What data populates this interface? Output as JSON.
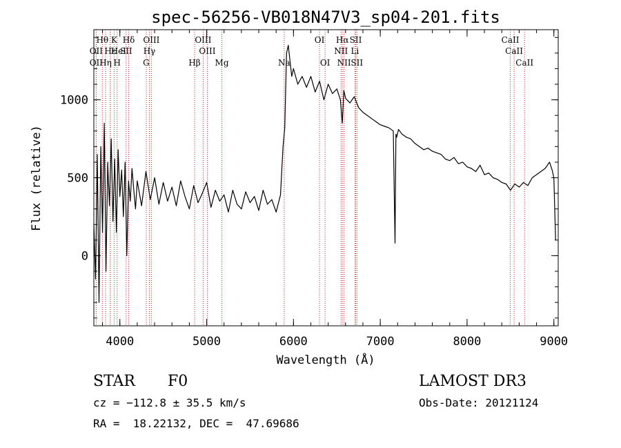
{
  "chart_data": {
    "type": "line",
    "title": "spec-56256-VB018N47V3_sp04-201.fits",
    "xlabel": "Wavelength (Å)",
    "ylabel": "Flux (relative)",
    "xlim": [
      3700,
      9050
    ],
    "ylim": [
      -450,
      1450
    ],
    "xticks": [
      {
        "value": 4000,
        "label": "4000"
      },
      {
        "value": 5000,
        "label": "5000"
      },
      {
        "value": 6000,
        "label": "6000"
      },
      {
        "value": 7000,
        "label": "7000"
      },
      {
        "value": 8000,
        "label": "8000"
      },
      {
        "value": 9000,
        "label": "9000"
      }
    ],
    "yticks": [
      {
        "value": 0,
        "label": "0"
      },
      {
        "value": 500,
        "label": "500"
      },
      {
        "value": 1000,
        "label": "1000"
      }
    ],
    "series": [
      {
        "name": "flux",
        "x": [
          3700,
          3720,
          3740,
          3760,
          3780,
          3800,
          3820,
          3840,
          3860,
          3880,
          3900,
          3920,
          3940,
          3960,
          3980,
          4000,
          4020,
          4040,
          4060,
          4080,
          4100,
          4120,
          4140,
          4160,
          4180,
          4200,
          4250,
          4300,
          4350,
          4400,
          4450,
          4500,
          4550,
          4600,
          4650,
          4700,
          4750,
          4800,
          4850,
          4900,
          4950,
          5000,
          5050,
          5100,
          5150,
          5200,
          5250,
          5300,
          5350,
          5400,
          5450,
          5500,
          5550,
          5600,
          5650,
          5700,
          5750,
          5800,
          5850,
          5880,
          5900,
          5920,
          5940,
          5960,
          5980,
          6000,
          6050,
          6100,
          6150,
          6200,
          6250,
          6300,
          6350,
          6400,
          6450,
          6500,
          6540,
          6563,
          6580,
          6600,
          6650,
          6700,
          6750,
          6800,
          6850,
          6900,
          6950,
          7000,
          7050,
          7100,
          7150,
          7170,
          7180,
          7190,
          7210,
          7250,
          7300,
          7350,
          7400,
          7450,
          7500,
          7550,
          7600,
          7650,
          7700,
          7750,
          7800,
          7850,
          7900,
          7950,
          8000,
          8050,
          8100,
          8150,
          8200,
          8250,
          8300,
          8350,
          8400,
          8450,
          8500,
          8550,
          8600,
          8650,
          8700,
          8750,
          8800,
          8850,
          8900,
          8950,
          8980,
          9000,
          9020
        ],
        "values": [
          200,
          -150,
          650,
          -300,
          700,
          150,
          850,
          -100,
          600,
          320,
          750,
          220,
          620,
          150,
          680,
          380,
          550,
          250,
          600,
          0,
          480,
          350,
          560,
          420,
          300,
          480,
          320,
          540,
          360,
          500,
          330,
          470,
          350,
          440,
          320,
          480,
          380,
          300,
          450,
          340,
          400,
          470,
          310,
          420,
          350,
          390,
          280,
          420,
          330,
          300,
          410,
          340,
          380,
          290,
          420,
          330,
          360,
          280,
          390,
          700,
          820,
          1300,
          1350,
          1250,
          1150,
          1200,
          1100,
          1150,
          1080,
          1150,
          1050,
          1120,
          1000,
          1100,
          1040,
          1070,
          1000,
          850,
          1060,
          1010,
          980,
          1020,
          950,
          920,
          900,
          880,
          860,
          840,
          830,
          820,
          800,
          80,
          780,
          760,
          810,
          780,
          760,
          750,
          720,
          700,
          680,
          690,
          670,
          660,
          650,
          620,
          610,
          630,
          590,
          600,
          570,
          560,
          540,
          580,
          520,
          530,
          500,
          490,
          470,
          460,
          420,
          460,
          440,
          470,
          450,
          500,
          520,
          540,
          560,
          600,
          550,
          500,
          100
        ]
      }
    ],
    "spectral_lines": [
      {
        "label": "Hθ",
        "row": 1,
        "wavelength": 3798
      },
      {
        "label": "K",
        "row": 1,
        "wavelength": 3934
      },
      {
        "label": "Hδ",
        "row": 1,
        "wavelength": 4102
      },
      {
        "label": "OIII",
        "row": 1,
        "wavelength": 4363
      },
      {
        "label": "OIII",
        "row": 1,
        "wavelength": 4959
      },
      {
        "label": "OI",
        "row": 1,
        "wavelength": 6300
      },
      {
        "label": "Hα",
        "row": 1,
        "wavelength": 6563
      },
      {
        "label": "SII",
        "row": 1,
        "wavelength": 6717
      },
      {
        "label": "CaII",
        "row": 1,
        "wavelength": 8498
      },
      {
        "label": "OII",
        "row": 2,
        "wavelength": 3727
      },
      {
        "label": "Hε",
        "row": 2,
        "wavelength": 3889
      },
      {
        "label": "HeI",
        "row": 2,
        "wavelength": 3889
      },
      {
        "label": "SII",
        "row": 2,
        "wavelength": 4072
      },
      {
        "label": "Hγ",
        "row": 2,
        "wavelength": 4340
      },
      {
        "label": "OIII",
        "row": 2,
        "wavelength": 5007
      },
      {
        "label": "NII",
        "row": 2,
        "wavelength": 6548
      },
      {
        "label": "Li",
        "row": 2,
        "wavelength": 6708
      },
      {
        "label": "CaII",
        "row": 2,
        "wavelength": 8542
      },
      {
        "label": "OII",
        "row": 3,
        "wavelength": 3727
      },
      {
        "label": "Hη",
        "row": 3,
        "wavelength": 3835
      },
      {
        "label": "H",
        "row": 3,
        "wavelength": 3968
      },
      {
        "label": "G",
        "row": 3,
        "wavelength": 4304
      },
      {
        "label": "Hβ",
        "row": 3,
        "wavelength": 4861
      },
      {
        "label": "Mg",
        "row": 3,
        "wavelength": 5175
      },
      {
        "label": "Na",
        "row": 3,
        "wavelength": 5893
      },
      {
        "label": "OI",
        "row": 3,
        "wavelength": 6364
      },
      {
        "label": "NII",
        "row": 3,
        "wavelength": 6583
      },
      {
        "label": "SII",
        "row": 3,
        "wavelength": 6731
      },
      {
        "label": "CaII",
        "row": 3,
        "wavelength": 8662
      }
    ]
  },
  "info": {
    "object_class": "STAR",
    "subclass": "F0",
    "survey": "LAMOST DR3",
    "cz": "cz = −112.8 ± 35.5 km/s",
    "obs_date": "Obs-Date: 20121124",
    "coords": "RA =  18.22132, DEC =  47.69686"
  },
  "colors": {
    "line_marker": "#cc2222",
    "spectrum": "#000000"
  }
}
